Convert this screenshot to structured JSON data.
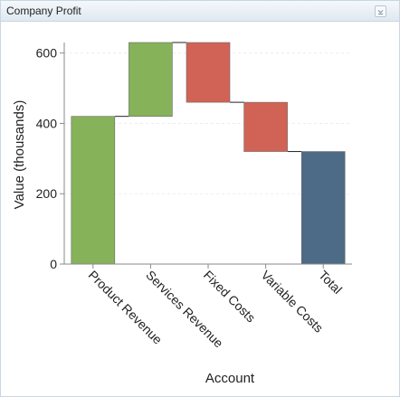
{
  "panel": {
    "title": "Company Profit",
    "menu_icon": "chevron-down-icon"
  },
  "chart_data": {
    "type": "waterfall",
    "title": "",
    "xlabel": "Account",
    "ylabel": "Value (thousands)",
    "ylim": [
      0,
      630
    ],
    "yticks": [
      0,
      200,
      400,
      600
    ],
    "grid": true,
    "categories": [
      "Product Revenue",
      "Services Revenue",
      "Fixed Costs",
      "Variable Costs",
      "Total"
    ],
    "values": [
      420,
      210,
      -170,
      -140,
      320
    ],
    "cumulative": [
      420,
      630,
      460,
      320,
      320
    ],
    "kinds": [
      "increase",
      "increase",
      "decrease",
      "decrease",
      "total"
    ],
    "colors": {
      "increase": "#86b25a",
      "decrease": "#d06355",
      "total": "#4d6a86"
    }
  }
}
